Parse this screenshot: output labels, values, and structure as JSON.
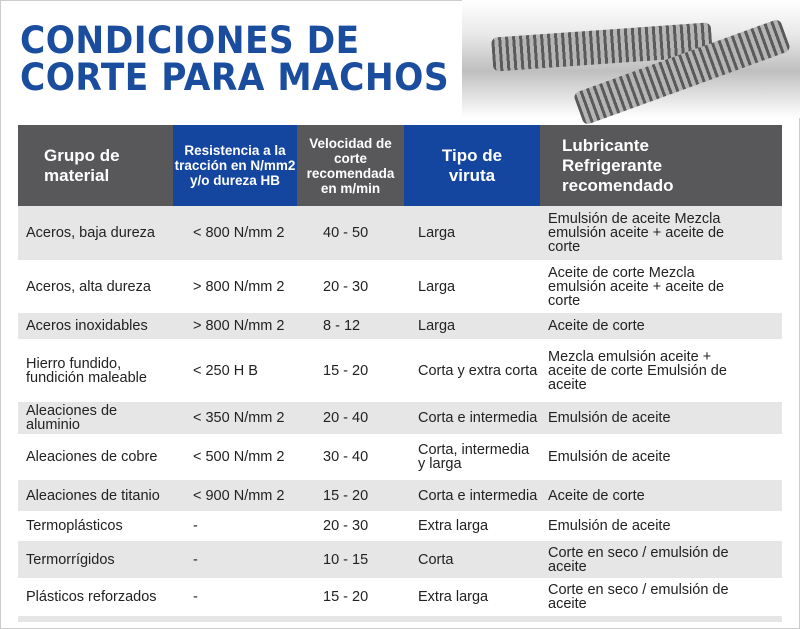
{
  "title": {
    "line1": "CONDICIONES DE",
    "line2": "CORTE PARA MACHOS"
  },
  "headers": [
    "Grupo de material",
    "Resistencia a la tracción en N/mm2 y/o dureza HB",
    "Velocidad de corte recomendada en m/min",
    "Tipo de viruta",
    "Lubricante Refrigerante recomendado"
  ],
  "rows": [
    [
      "Aceros, baja dureza",
      "< 800 N/mm 2",
      "40 - 50",
      "Larga",
      "Emulsión de aceite Mezcla emulsión aceite + aceite de corte"
    ],
    [
      "Aceros, alta dureza",
      "> 800 N/mm 2",
      "20 - 30",
      "Larga",
      "Aceite de corte Mezcla emulsión aceite + aceite de corte"
    ],
    [
      "Aceros inoxidables",
      "> 800 N/mm 2",
      "8 - 12",
      "Larga",
      "Aceite de corte"
    ],
    [
      "Hierro fundido, fundición maleable",
      "< 250 H B",
      "15 - 20",
      "Corta y extra corta",
      "Mezcla emulsión aceite + aceite de corte Emulsión de aceite"
    ],
    [
      "Aleaciones de aluminio",
      "< 350 N/mm 2",
      "20 - 40",
      "Corta e intermedia",
      "Emulsión de aceite"
    ],
    [
      "Aleaciones de cobre",
      "< 500 N/mm 2",
      "30 - 40",
      "Corta, intermedia y larga",
      "Emulsión de aceite"
    ],
    [
      "Aleaciones de titanio",
      "< 900 N/mm 2",
      "15 - 20",
      "Corta e intermedia",
      "Aceite de corte"
    ],
    [
      "Termoplásticos",
      "-",
      "20 - 30",
      "Extra larga",
      "Emulsión de aceite"
    ],
    [
      "Termorrígidos",
      "-",
      "10 - 15",
      "Corta",
      "Corte en seco / emulsión de aceite"
    ],
    [
      "Plásticos reforzados",
      "-",
      "15 - 20",
      "Extra larga",
      "Corte en seco / emulsión de aceite"
    ]
  ]
}
